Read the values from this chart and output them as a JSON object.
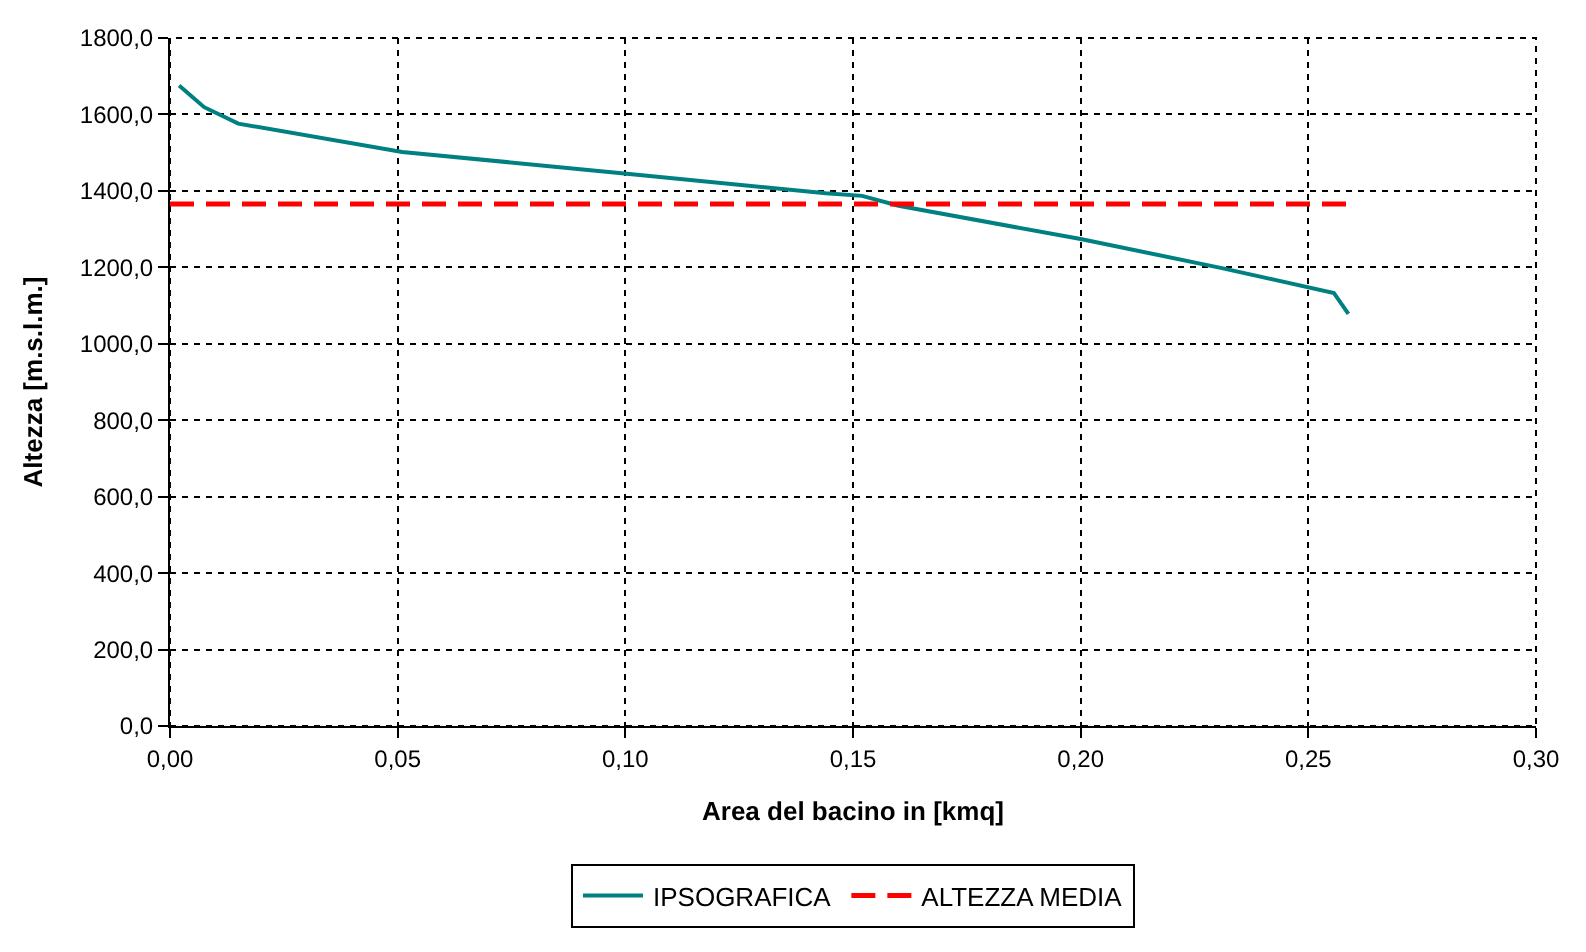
{
  "chart_data": {
    "type": "line",
    "xlabel": "Area del bacino in [kmq]",
    "ylabel": "Altezza [m.s.l.m.]",
    "xlim": [
      0,
      0.3
    ],
    "xticks": [
      {
        "value": 0,
        "label": "0,00"
      },
      {
        "value": 0.05,
        "label": "0,05"
      },
      {
        "value": 0.1,
        "label": "0,10"
      },
      {
        "value": 0.15,
        "label": "0,15"
      },
      {
        "value": 0.2,
        "label": "0,20"
      },
      {
        "value": 0.25,
        "label": "0,25"
      },
      {
        "value": 0.3,
        "label": "0,30"
      }
    ],
    "ylim": [
      0,
      1800
    ],
    "yticks": [
      {
        "value": 0,
        "label": "0,0"
      },
      {
        "value": 200,
        "label": "200,0"
      },
      {
        "value": 400,
        "label": "400,0"
      },
      {
        "value": 600,
        "label": "600,0"
      },
      {
        "value": 800,
        "label": "800,0"
      },
      {
        "value": 1000,
        "label": "1000,0"
      },
      {
        "value": 1200,
        "label": "1200,0"
      },
      {
        "value": 1400,
        "label": "1400,0"
      },
      {
        "value": 1600,
        "label": "1600,0"
      },
      {
        "value": 1800,
        "label": "1800,0"
      }
    ],
    "grid": true,
    "legend": "bottom",
    "marker": "none",
    "series": [
      {
        "name": "IPSOGRAFICA",
        "color": "#008080",
        "line_style": "solid",
        "x": [
          0.002,
          0.0075,
          0.015,
          0.051,
          0.102,
          0.144,
          0.152,
          0.16,
          0.2,
          0.231,
          0.2556,
          0.2588
        ],
        "values": [
          1676,
          1619,
          1576,
          1502,
          1443,
          1394,
          1387,
          1361,
          1274,
          1198,
          1133,
          1078
        ]
      },
      {
        "name": "ALTEZZA MEDIA",
        "color": "#ff0000",
        "line_style": "dashed",
        "x": [
          0,
          0.259
        ],
        "values": [
          1366,
          1366
        ]
      }
    ]
  }
}
